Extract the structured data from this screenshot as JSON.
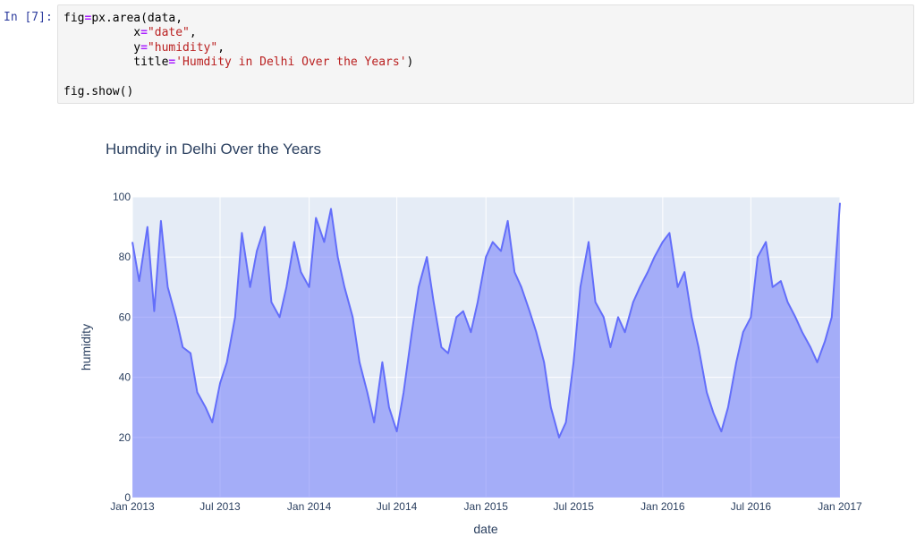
{
  "notebook": {
    "prompt": "In [7]:",
    "code_lines": [
      [
        {
          "t": "fig"
        },
        {
          "t": "=",
          "c": "op"
        },
        {
          "t": "px.area(data,"
        }
      ],
      [
        {
          "t": "          x"
        },
        {
          "t": "=",
          "c": "op"
        },
        {
          "t": "\"date\"",
          "c": "str"
        },
        {
          "t": ","
        }
      ],
      [
        {
          "t": "          y"
        },
        {
          "t": "=",
          "c": "op"
        },
        {
          "t": "\"humidity\"",
          "c": "str"
        },
        {
          "t": ","
        }
      ],
      [
        {
          "t": "          title"
        },
        {
          "t": "=",
          "c": "op"
        },
        {
          "t": "'Humdity in Delhi Over the Years'",
          "c": "str"
        },
        {
          "t": ")"
        }
      ],
      [
        {
          "t": ""
        }
      ],
      [
        {
          "t": "fig.show()"
        }
      ]
    ]
  },
  "chart_data": {
    "type": "area",
    "title": "Humdity in Delhi Over the Years",
    "xlabel": "date",
    "ylabel": "humidity",
    "xlim": [
      "2013-01-01",
      "2017-01-01"
    ],
    "ylim": [
      0,
      100
    ],
    "xticks": [
      {
        "date": "2013-01-01",
        "label": "Jan 2013"
      },
      {
        "date": "2013-07-01",
        "label": "Jul 2013"
      },
      {
        "date": "2014-01-01",
        "label": "Jan 2014"
      },
      {
        "date": "2014-07-01",
        "label": "Jul 2014"
      },
      {
        "date": "2015-01-01",
        "label": "Jan 2015"
      },
      {
        "date": "2015-07-01",
        "label": "Jul 2015"
      },
      {
        "date": "2016-01-01",
        "label": "Jan 2016"
      },
      {
        "date": "2016-07-01",
        "label": "Jul 2016"
      },
      {
        "date": "2017-01-01",
        "label": "Jan 2017"
      }
    ],
    "yticks": [
      0,
      20,
      40,
      60,
      80,
      100
    ],
    "grid": true,
    "colors": {
      "line": "#636efa",
      "fill": "rgba(99,110,250,0.5)",
      "plot_bg": "#e5ecf6",
      "grid": "#ffffff",
      "text": "#2a3f5f"
    },
    "x": [
      "2013-01-01",
      "2013-01-15",
      "2013-02-01",
      "2013-02-15",
      "2013-03-01",
      "2013-03-15",
      "2013-04-01",
      "2013-04-15",
      "2013-05-01",
      "2013-05-15",
      "2013-06-01",
      "2013-06-15",
      "2013-07-01",
      "2013-07-15",
      "2013-08-01",
      "2013-08-15",
      "2013-09-01",
      "2013-09-15",
      "2013-10-01",
      "2013-10-15",
      "2013-11-01",
      "2013-11-15",
      "2013-12-01",
      "2013-12-15",
      "2014-01-01",
      "2014-01-15",
      "2014-02-01",
      "2014-02-15",
      "2014-03-01",
      "2014-03-15",
      "2014-04-01",
      "2014-04-15",
      "2014-05-01",
      "2014-05-15",
      "2014-06-01",
      "2014-06-15",
      "2014-07-01",
      "2014-07-15",
      "2014-08-01",
      "2014-08-15",
      "2014-09-01",
      "2014-09-15",
      "2014-10-01",
      "2014-10-15",
      "2014-11-01",
      "2014-11-15",
      "2014-12-01",
      "2014-12-15",
      "2015-01-01",
      "2015-01-15",
      "2015-02-01",
      "2015-02-15",
      "2015-03-01",
      "2015-03-15",
      "2015-04-01",
      "2015-04-15",
      "2015-05-01",
      "2015-05-15",
      "2015-06-01",
      "2015-06-15",
      "2015-07-01",
      "2015-07-15",
      "2015-08-01",
      "2015-08-15",
      "2015-09-01",
      "2015-09-15",
      "2015-10-01",
      "2015-10-15",
      "2015-11-01",
      "2015-11-15",
      "2015-12-01",
      "2015-12-15",
      "2016-01-01",
      "2016-01-15",
      "2016-02-01",
      "2016-02-15",
      "2016-03-01",
      "2016-03-15",
      "2016-04-01",
      "2016-04-15",
      "2016-05-01",
      "2016-05-15",
      "2016-06-01",
      "2016-06-15",
      "2016-07-01",
      "2016-07-15",
      "2016-08-01",
      "2016-08-15",
      "2016-09-01",
      "2016-09-15",
      "2016-10-01",
      "2016-10-15",
      "2016-11-01",
      "2016-11-15",
      "2016-12-01",
      "2016-12-15",
      "2017-01-01"
    ],
    "y": [
      85,
      72,
      90,
      62,
      92,
      70,
      60,
      50,
      48,
      35,
      30,
      25,
      38,
      45,
      60,
      88,
      70,
      82,
      90,
      65,
      60,
      70,
      85,
      75,
      70,
      93,
      85,
      96,
      80,
      70,
      60,
      45,
      35,
      25,
      45,
      30,
      22,
      35,
      55,
      70,
      80,
      65,
      50,
      48,
      60,
      62,
      55,
      65,
      80,
      85,
      82,
      92,
      75,
      70,
      62,
      55,
      45,
      30,
      20,
      25,
      45,
      70,
      85,
      65,
      60,
      50,
      60,
      55,
      65,
      70,
      75,
      80,
      85,
      88,
      70,
      75,
      60,
      50,
      35,
      28,
      22,
      30,
      45,
      55,
      60,
      80,
      85,
      70,
      72,
      65,
      60,
      55,
      50,
      45,
      52,
      60,
      98
    ]
  }
}
